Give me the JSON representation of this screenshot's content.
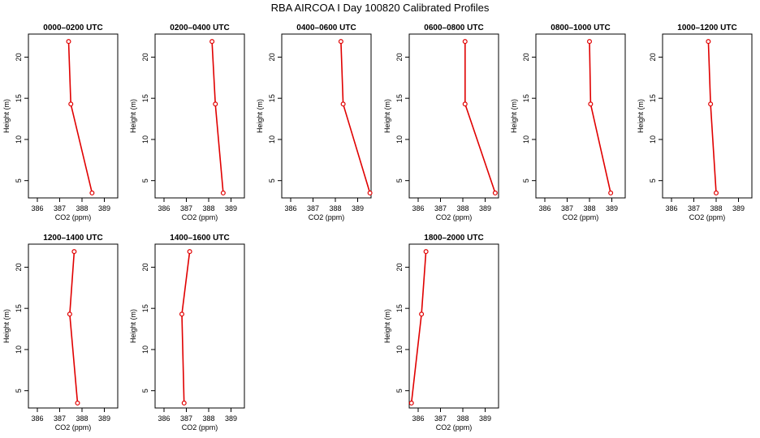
{
  "title": "RBA AIRCOA I  Day 100820  Calibrated Profiles",
  "colors": {
    "profile": "#e00000",
    "axis": "#000000"
  },
  "chart_data": [
    {
      "type": "line",
      "title": "0000–0200 UTC",
      "xlabel": "CO2 (ppm)",
      "ylabel": "Height (m)",
      "xlim": [
        385.6,
        389.6
      ],
      "ylim": [
        2.9,
        22.8
      ],
      "xticks": [
        "386",
        "387",
        "388",
        "389"
      ],
      "yticks": [
        "5",
        "10",
        "15",
        "20"
      ],
      "series": [
        {
          "x": [
            388.45,
            387.5,
            387.4
          ],
          "y": [
            3.5,
            14.3,
            21.9
          ]
        }
      ]
    },
    {
      "type": "line",
      "title": "0200–0400 UTC",
      "xlabel": "CO2 (ppm)",
      "ylabel": "Height (m)",
      "xlim": [
        385.6,
        389.6
      ],
      "ylim": [
        2.9,
        22.8
      ],
      "xticks": [
        "386",
        "387",
        "388",
        "389"
      ],
      "yticks": [
        "5",
        "10",
        "15",
        "20"
      ],
      "series": [
        {
          "x": [
            388.65,
            388.3,
            388.15
          ],
          "y": [
            3.5,
            14.3,
            21.9
          ]
        }
      ]
    },
    {
      "type": "line",
      "title": "0400–0600 UTC",
      "xlabel": "CO2 (ppm)",
      "ylabel": "Height (m)",
      "xlim": [
        385.6,
        389.6
      ],
      "ylim": [
        2.9,
        22.8
      ],
      "xticks": [
        "386",
        "387",
        "388",
        "389"
      ],
      "yticks": [
        "5",
        "10",
        "15",
        "20"
      ],
      "series": [
        {
          "x": [
            389.55,
            388.35,
            388.25
          ],
          "y": [
            3.5,
            14.3,
            21.9
          ]
        }
      ]
    },
    {
      "type": "line",
      "title": "0600–0800 UTC",
      "xlabel": "CO2 (ppm)",
      "ylabel": "Height (m)",
      "xlim": [
        385.6,
        389.6
      ],
      "ylim": [
        2.9,
        22.8
      ],
      "xticks": [
        "386",
        "387",
        "388",
        "389"
      ],
      "yticks": [
        "5",
        "10",
        "15",
        "20"
      ],
      "series": [
        {
          "x": [
            389.45,
            388.1,
            388.1
          ],
          "y": [
            3.5,
            14.3,
            21.9
          ]
        }
      ]
    },
    {
      "type": "line",
      "title": "0800–1000 UTC",
      "xlabel": "CO2 (ppm)",
      "ylabel": "Height (m)",
      "xlim": [
        385.6,
        389.6
      ],
      "ylim": [
        2.9,
        22.8
      ],
      "xticks": [
        "386",
        "387",
        "388",
        "389"
      ],
      "yticks": [
        "5",
        "10",
        "15",
        "20"
      ],
      "series": [
        {
          "x": [
            388.95,
            388.05,
            388.0
          ],
          "y": [
            3.5,
            14.3,
            21.9
          ]
        }
      ]
    },
    {
      "type": "line",
      "title": "1000–1200 UTC",
      "xlabel": "CO2 (ppm)",
      "ylabel": "Height (m)",
      "xlim": [
        385.6,
        389.6
      ],
      "ylim": [
        2.9,
        22.8
      ],
      "xticks": [
        "386",
        "387",
        "388",
        "389"
      ],
      "yticks": [
        "5",
        "10",
        "15",
        "20"
      ],
      "series": [
        {
          "x": [
            388.0,
            387.75,
            387.65
          ],
          "y": [
            3.5,
            14.3,
            21.9
          ]
        }
      ]
    },
    {
      "type": "line",
      "title": "1200–1400 UTC",
      "xlabel": "CO2 (ppm)",
      "ylabel": "Height (m)",
      "xlim": [
        385.6,
        389.6
      ],
      "ylim": [
        2.9,
        22.8
      ],
      "xticks": [
        "386",
        "387",
        "388",
        "389"
      ],
      "yticks": [
        "5",
        "10",
        "15",
        "20"
      ],
      "series": [
        {
          "x": [
            387.8,
            387.45,
            387.65
          ],
          "y": [
            3.5,
            14.3,
            21.9
          ]
        }
      ]
    },
    {
      "type": "line",
      "title": "1400–1600 UTC",
      "xlabel": "CO2 (ppm)",
      "ylabel": "Height (m)",
      "xlim": [
        385.6,
        389.6
      ],
      "ylim": [
        2.9,
        22.8
      ],
      "xticks": [
        "386",
        "387",
        "388",
        "389"
      ],
      "yticks": [
        "5",
        "10",
        "15",
        "20"
      ],
      "series": [
        {
          "x": [
            386.9,
            386.8,
            387.15
          ],
          "y": [
            3.5,
            14.3,
            21.9
          ]
        }
      ]
    },
    {
      "type": "line",
      "title": "1800–2000 UTC",
      "xlabel": "CO2 (ppm)",
      "ylabel": "Height (m)",
      "xlim": [
        385.6,
        389.6
      ],
      "ylim": [
        2.9,
        22.8
      ],
      "xticks": [
        "386",
        "387",
        "388",
        "389"
      ],
      "yticks": [
        "5",
        "10",
        "15",
        "20"
      ],
      "series": [
        {
          "x": [
            385.7,
            386.15,
            386.35
          ],
          "y": [
            3.5,
            14.3,
            21.9
          ]
        }
      ]
    }
  ]
}
